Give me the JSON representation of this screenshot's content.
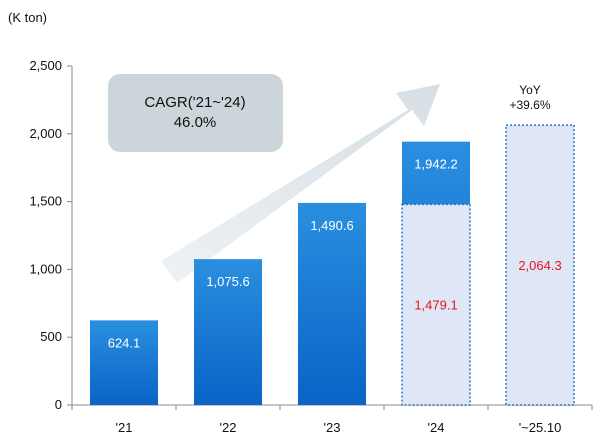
{
  "chart_data": {
    "type": "bar",
    "unit_label": "(K ton)",
    "categories": [
      "'21",
      "'22",
      "'23",
      "'24",
      "'~25.10"
    ],
    "values": [
      624.1,
      1075.6,
      1490.6,
      1942.2,
      null
    ],
    "value_labels": [
      "624.1",
      "1,075.6",
      "1,490.6",
      "1,942.2",
      ""
    ],
    "ylim": [
      0,
      2500
    ],
    "yticks": [
      0,
      500,
      1000,
      1500,
      2000,
      2500
    ],
    "ytick_labels": [
      "0",
      "500",
      "1,000",
      "1,500",
      "2,000",
      "2,500"
    ],
    "comparison_boxes": [
      {
        "category": "'24",
        "value": 1479.1,
        "label": "1,479.1"
      },
      {
        "category": "'~25.10",
        "value": 2064.3,
        "label": "2,064.3"
      }
    ],
    "annotations": {
      "cagr_line1": "CAGR('21~'24)",
      "cagr_line2": "46.0%",
      "yoy_line1": "YoY",
      "yoy_line2": "+39.6%"
    },
    "colors": {
      "bar_top": "#2a8fe0",
      "bar_bottom": "#0a63c6",
      "dashed_border": "#2e6fc9",
      "dashed_fill": "#dfe6f5",
      "red_text": "#e8141c",
      "axis": "#888888",
      "cagr_box": "#ccd5da",
      "arrow": "#dde4e9"
    },
    "grid": false,
    "legend": "none"
  }
}
